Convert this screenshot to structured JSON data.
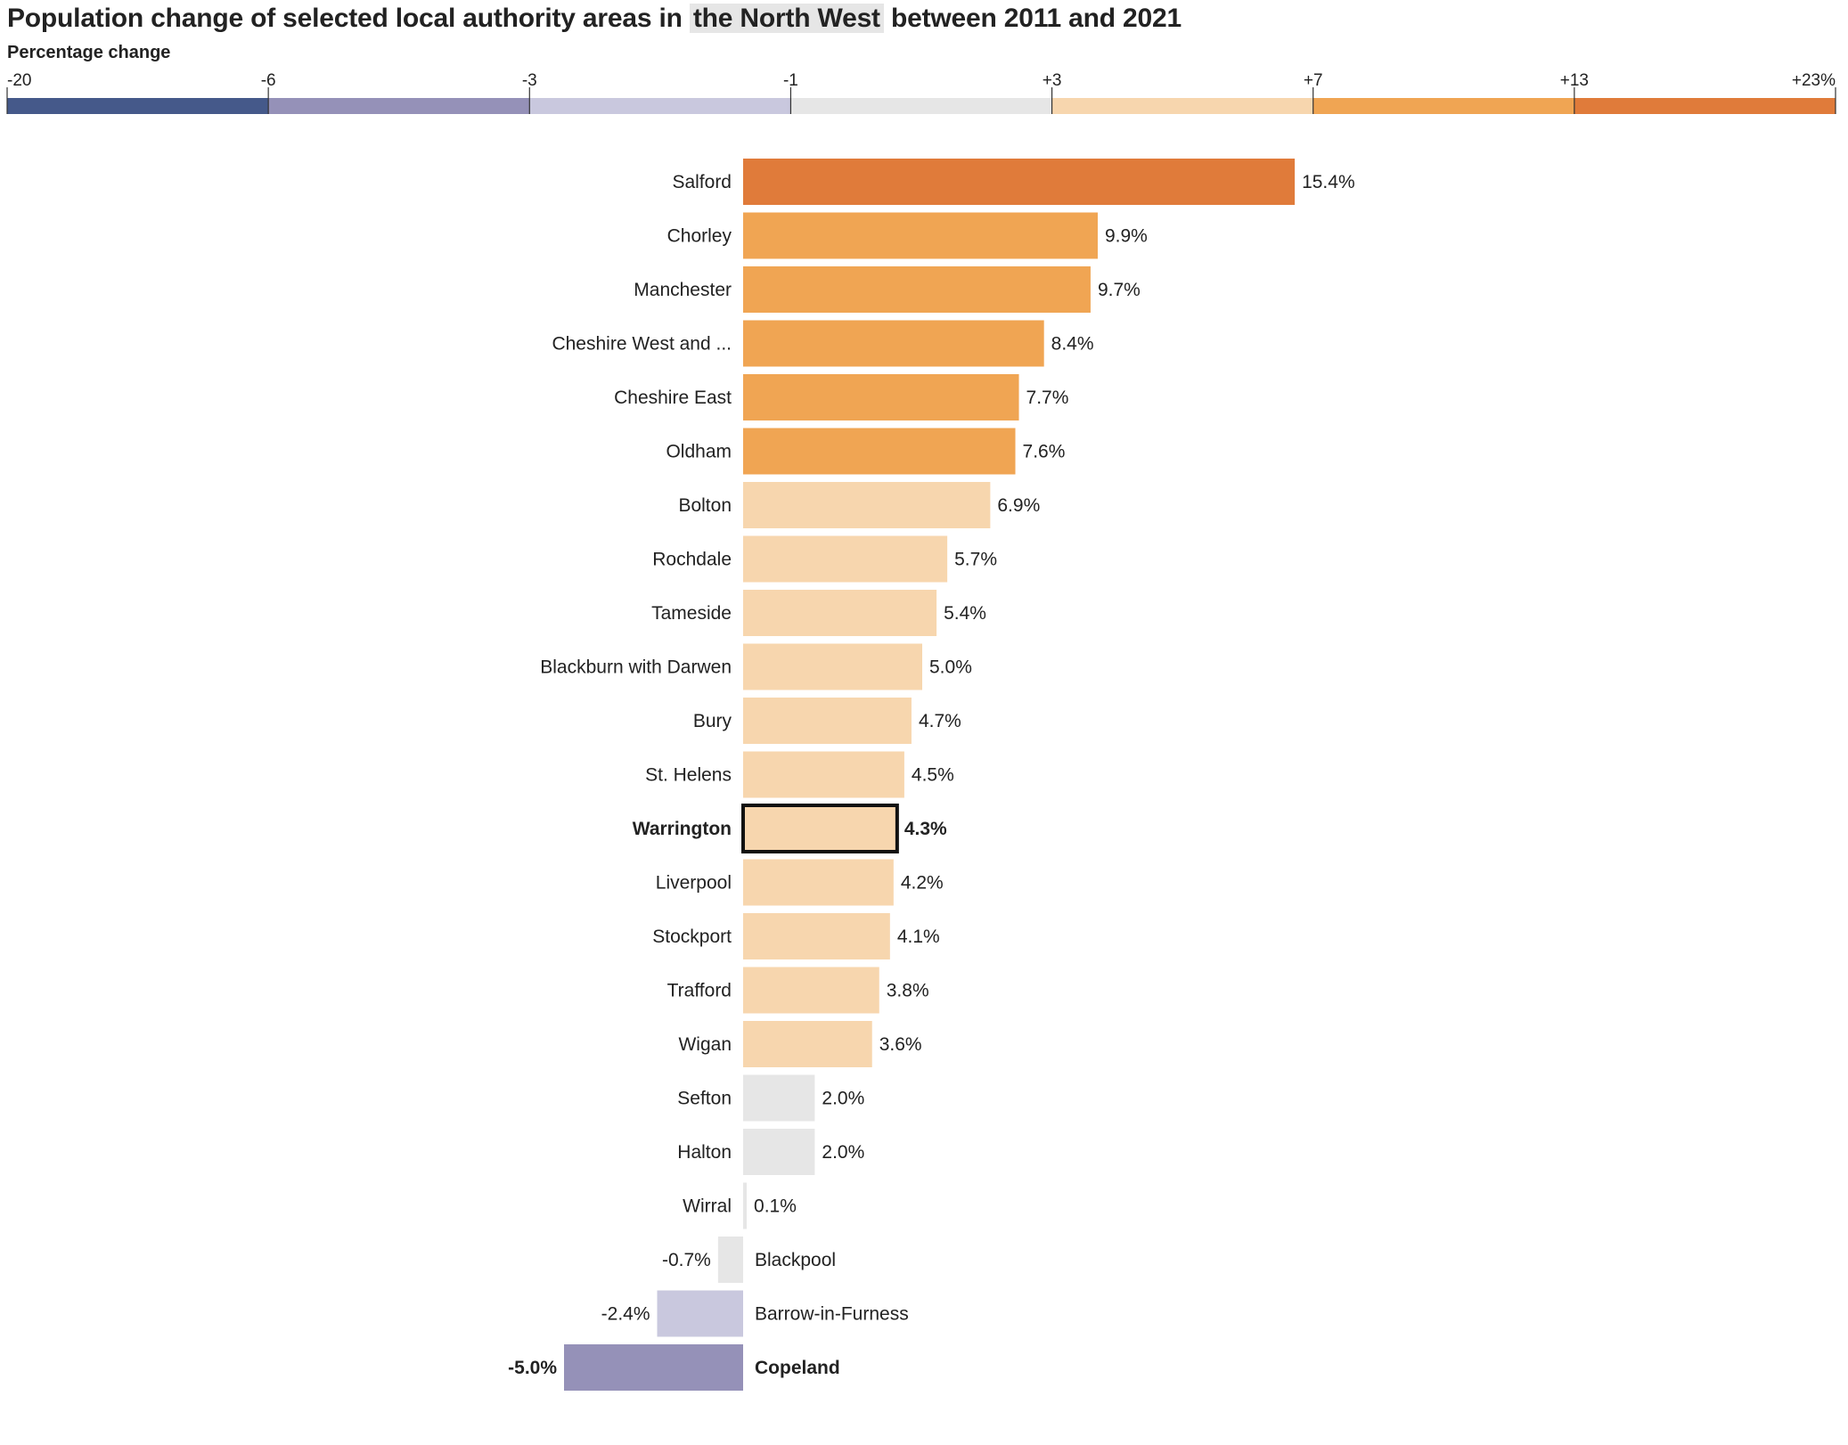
{
  "header": {
    "title_pre": "Population change of selected local authority areas in ",
    "title_highlight": "the North West",
    "title_post": " between 2011 and 2021",
    "legend_title": "Percentage change"
  },
  "legend": {
    "breaks": [
      -20,
      -6,
      -3,
      -1,
      3,
      7,
      13,
      23
    ],
    "tick_labels": [
      "-20",
      "-6",
      "-3",
      "-1",
      "+3",
      "+7",
      "+13",
      "+23%"
    ],
    "colors": [
      "#45598a",
      "#9591b8",
      "#c9c8de",
      "#e6e6e6",
      "#f7d6ae",
      "#f0a553",
      "#e07b3a"
    ]
  },
  "chart_data": {
    "type": "bar",
    "orientation": "horizontal",
    "title": "Population change of selected local authority areas in the North West between 2011 and 2021",
    "xlabel": "Percentage change",
    "unit": "%",
    "categories": [
      "Salford",
      "Chorley",
      "Manchester",
      "Cheshire West and ...",
      "Cheshire East",
      "Oldham",
      "Bolton",
      "Rochdale",
      "Tameside",
      "Blackburn with Darwen",
      "Bury",
      "St. Helens",
      "Warrington",
      "Liverpool",
      "Stockport",
      "Trafford",
      "Wigan",
      "Sefton",
      "Halton",
      "Wirral",
      "Blackpool",
      "Barrow-in-Furness",
      "Copeland"
    ],
    "values": [
      15.4,
      9.9,
      9.7,
      8.4,
      7.7,
      7.6,
      6.9,
      5.7,
      5.4,
      5.0,
      4.7,
      4.5,
      4.3,
      4.2,
      4.1,
      3.8,
      3.6,
      2.0,
      2.0,
      0.1,
      -0.7,
      -2.4,
      -5.0
    ],
    "value_labels": [
      "15.4%",
      "9.9%",
      "9.7%",
      "8.4%",
      "7.7%",
      "7.6%",
      "6.9%",
      "5.7%",
      "5.4%",
      "5.0%",
      "4.7%",
      "4.5%",
      "4.3%",
      "4.2%",
      "4.1%",
      "3.8%",
      "3.6%",
      "2.0%",
      "2.0%",
      "0.1%",
      "-0.7%",
      "-2.4%",
      "-5.0%"
    ],
    "highlighted": [
      "Warrington"
    ],
    "bold": [
      "Warrington",
      "Copeland"
    ]
  }
}
